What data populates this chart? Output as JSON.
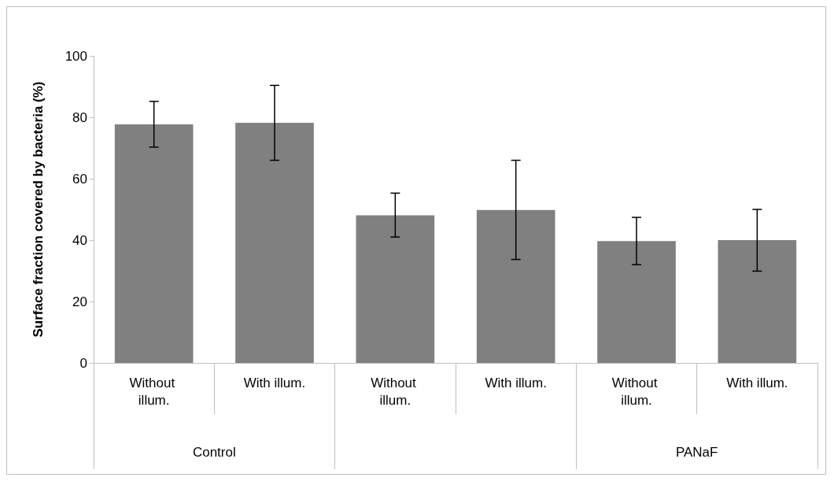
{
  "chart_data": {
    "type": "bar",
    "ylabel": "Surface fraction covered by bacteria (%)",
    "categories": [
      "Without illum.",
      "With illum.",
      "Without illum.",
      "With illum.",
      "Without illum.",
      "With illum."
    ],
    "values": [
      77.7,
      78.2,
      48.1,
      49.8,
      39.7,
      40.0
    ],
    "errors": [
      [
        70.3,
        85.2
      ],
      [
        66.0,
        90.4
      ],
      [
        41.0,
        55.3
      ],
      [
        33.7,
        66.0
      ],
      [
        32.0,
        47.4
      ],
      [
        29.9,
        50.0
      ]
    ],
    "color": "#808080",
    "annotations": [
      "Control",
      null,
      "PANaF"
    ],
    "ylim": [
      0,
      100
    ],
    "yticks": [
      0,
      20,
      40,
      60,
      80,
      100
    ],
    "grid": false
  }
}
